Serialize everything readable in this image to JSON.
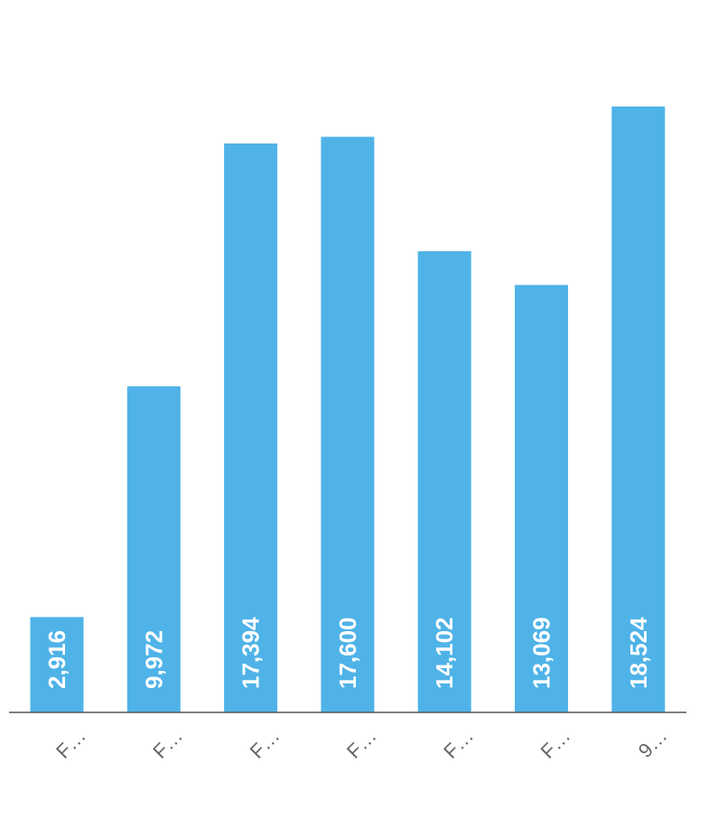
{
  "chart_data": {
    "type": "bar",
    "categories": [
      "F…",
      "F…",
      "F…",
      "F…",
      "F…",
      "F…",
      "9…"
    ],
    "value_labels": [
      "2,916",
      "9,972",
      "17,394",
      "17,600",
      "14,102",
      "13,069",
      "18,524"
    ],
    "series": [
      {
        "values": [
          2916,
          9972,
          17394,
          17600,
          14102,
          13069,
          18524
        ]
      }
    ],
    "title": "",
    "xlabel": "",
    "ylabel": "",
    "ylim": [
      0,
      20000
    ],
    "grid": false,
    "legend": "none",
    "colors": {
      "bar": "#4fb3e8",
      "axis": "#555555",
      "value_label": "#ffffff",
      "tick_label": "#666666"
    }
  }
}
